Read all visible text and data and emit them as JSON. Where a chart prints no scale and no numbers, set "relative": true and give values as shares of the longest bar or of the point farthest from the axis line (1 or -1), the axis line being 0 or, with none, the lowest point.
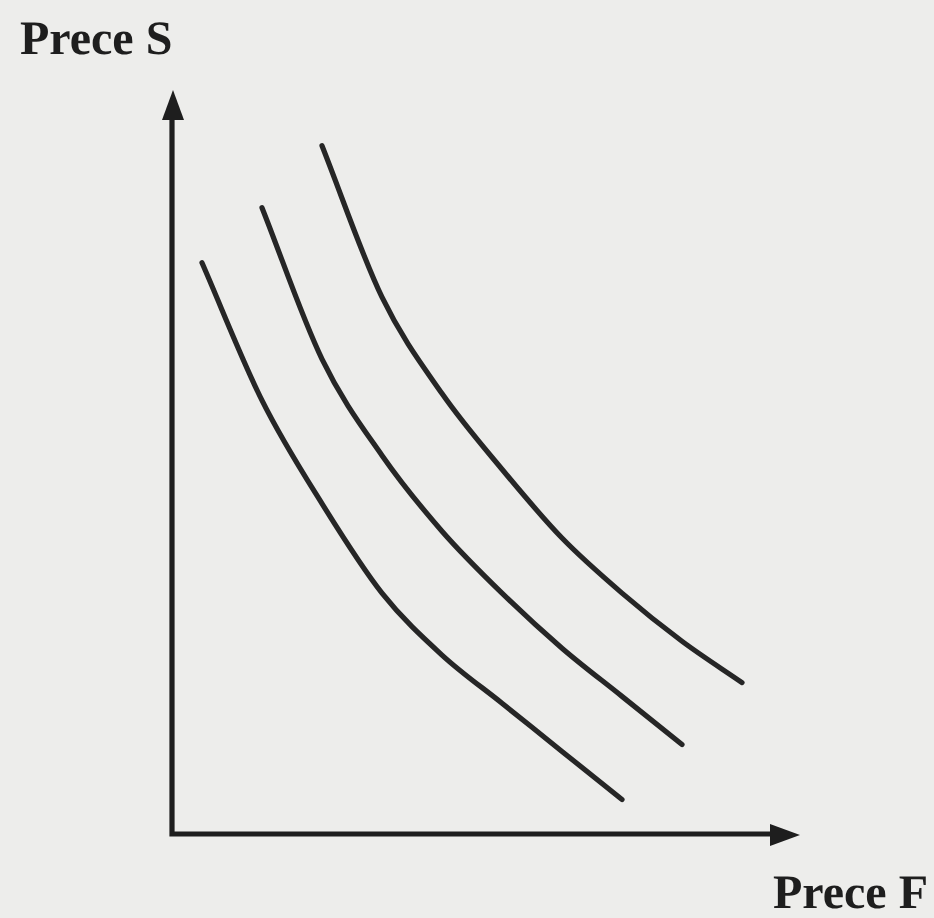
{
  "chart_data": {
    "type": "line",
    "xlabel": "Prece F",
    "ylabel": "Prece S",
    "relative": true,
    "marker": "none",
    "categories": [
      null,
      null,
      null,
      null,
      null,
      null,
      null,
      null,
      null,
      null
    ],
    "series": [
      {
        "color": "#262626",
        "values": [
          0.83,
          0.63,
          0.48,
          0.35,
          0.26,
          0.19,
          0.12,
          0.05,
          null,
          null
        ]
      },
      {
        "color": "#262626",
        "values": [
          null,
          0.91,
          0.69,
          0.55,
          0.44,
          0.35,
          0.27,
          0.2,
          0.13,
          null
        ]
      },
      {
        "color": "#262626",
        "values": [
          null,
          null,
          1.0,
          0.78,
          0.64,
          0.53,
          0.43,
          0.35,
          0.28,
          0.22
        ]
      }
    ]
  }
}
